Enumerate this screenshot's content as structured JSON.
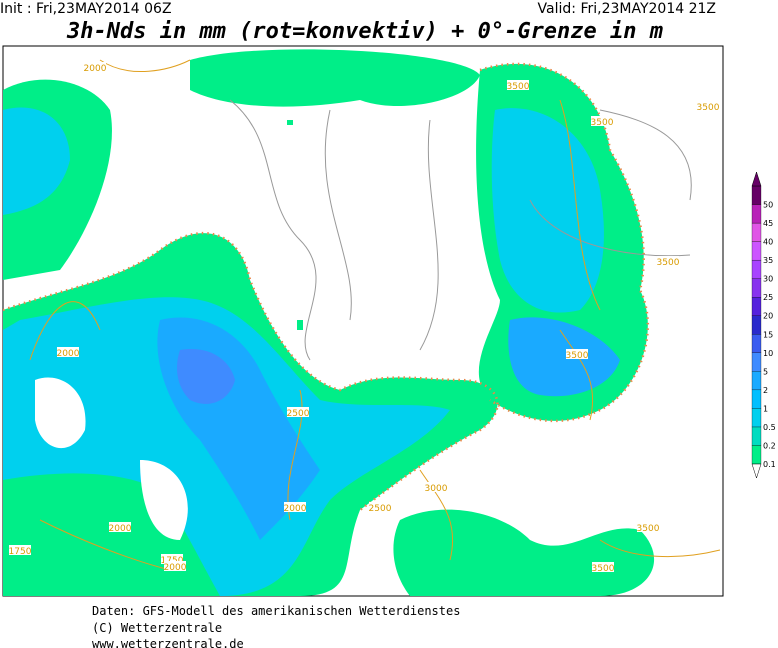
{
  "header": {
    "init": "Init : Fri,23MAY2014 06Z",
    "valid": "Valid: Fri,23MAY2014 21Z",
    "title": "3h-Nds in mm (rot=konvektiv) + 0°-Grenze in m"
  },
  "legend": {
    "levels": [
      "0.1",
      "0.2",
      "0.5",
      "1",
      "2",
      "5",
      "10",
      "15",
      "20",
      "25",
      "30",
      "35",
      "40",
      "45",
      "50"
    ],
    "colors": [
      "#00ee88",
      "#00dcc0",
      "#00d0ee",
      "#00bfff",
      "#1aaaff",
      "#3f8bff",
      "#3a5cf0",
      "#2a2acc",
      "#5522dd",
      "#8833ee",
      "#a844ff",
      "#cc55ff",
      "#e055e6",
      "#b822b8",
      "#660066"
    ]
  },
  "contour_labels": [
    "2000",
    "3500",
    "3500",
    "3500",
    "3500",
    "3500",
    "2000",
    "2500",
    "3000",
    "2500",
    "2000",
    "1750",
    "1750",
    "2000",
    "2000",
    "3500",
    "3500"
  ],
  "footer": {
    "lines": [
      "Daten: GFS-Modell des amerikanischen Wetterdienstes",
      "(C) Wetterzentrale",
      "www.wetterzentrale.de"
    ]
  }
}
